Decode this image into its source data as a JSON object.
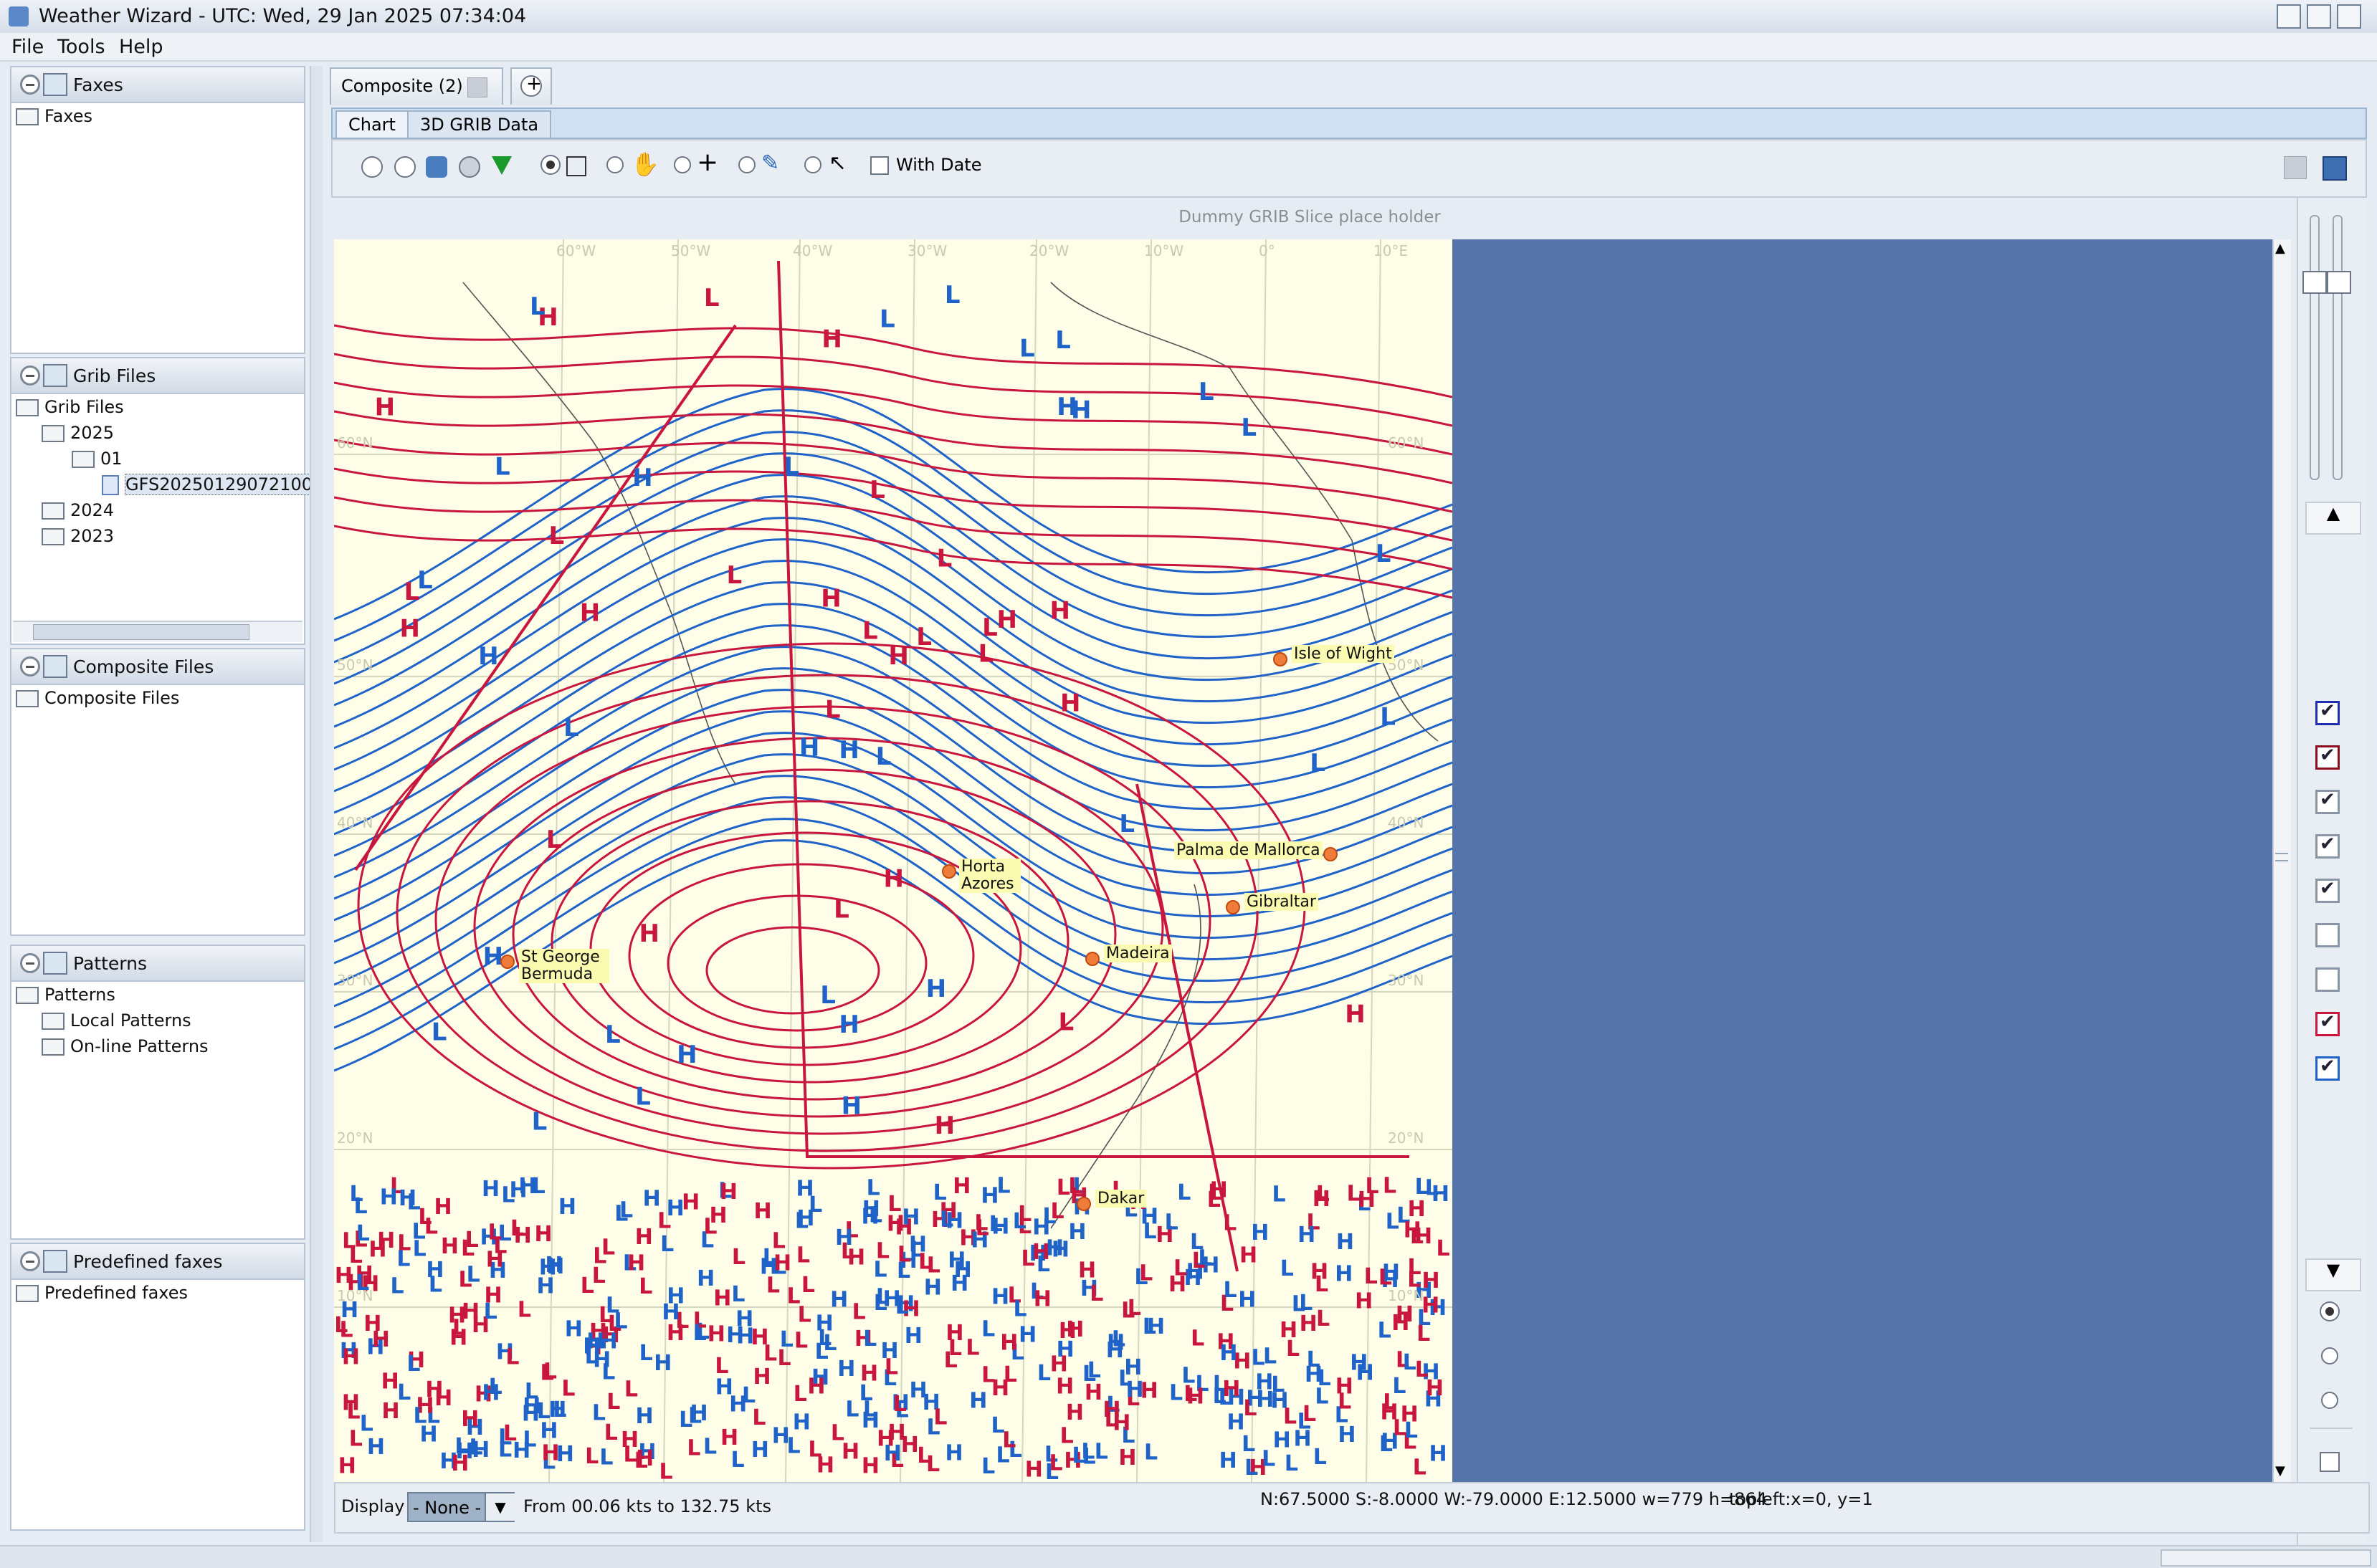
{
  "window": {
    "title": "Weather Wizard - UTC: Wed, 29 Jan 2025 07:34:04"
  },
  "menu": {
    "items": [
      "File",
      "Tools",
      "Help"
    ]
  },
  "left_panel": {
    "faxes": {
      "header": "Faxes",
      "items": [
        "Faxes"
      ]
    },
    "grib": {
      "header": "Grib Files",
      "root": "Grib Files",
      "year_2025": "2025",
      "month_01": "01",
      "file": "GFS20250129072100",
      "year_2024": "2024",
      "year_2023": "2023"
    },
    "composite": {
      "header": "Composite Files",
      "items": [
        "Composite Files"
      ]
    },
    "patterns": {
      "header": "Patterns",
      "root": "Patterns",
      "local": "Local Patterns",
      "online": "On-line Patterns"
    },
    "predefined": {
      "header": "Predefined faxes",
      "items": [
        "Predefined faxes"
      ]
    }
  },
  "tabs": {
    "composite_label": "Composite (2)"
  },
  "subtabs": [
    "Chart",
    "3D GRIB Data"
  ],
  "toolbar": {
    "with_date": "With Date"
  },
  "chart": {
    "placeholder": "Dummy GRIB Slice place holder",
    "lon_labels": [
      "60°W",
      "50°W",
      "40°W",
      "30°W",
      "20°W",
      "10°W",
      "0°",
      "10°E"
    ],
    "lat_labels": [
      "60°N",
      "50°N",
      "40°N",
      "30°N",
      "20°N",
      "10°N"
    ],
    "places": [
      {
        "name": "Isle of Wight"
      },
      {
        "name": "Palma de Mallorca"
      },
      {
        "name": "Gibraltar"
      },
      {
        "name": "Horta Azores"
      },
      {
        "name": "Madeira"
      },
      {
        "name": "St George Bermuda"
      },
      {
        "name": "Dakar"
      }
    ]
  },
  "status": {
    "display_label": "Display",
    "display_value": "- None -",
    "range": "From 00.06 kts to 132.75 kts",
    "bounds": "N:67.5000 S:-8.0000 W:-79.0000 E:12.5000 w=779 h=864",
    "topleft": "topleft:x=0, y=1"
  },
  "colors": {
    "high_pressure": "#c8163f",
    "low_pressure": "#1f63c9",
    "sea_background": "#fdfde8",
    "fill_blue": "#5574a9"
  }
}
